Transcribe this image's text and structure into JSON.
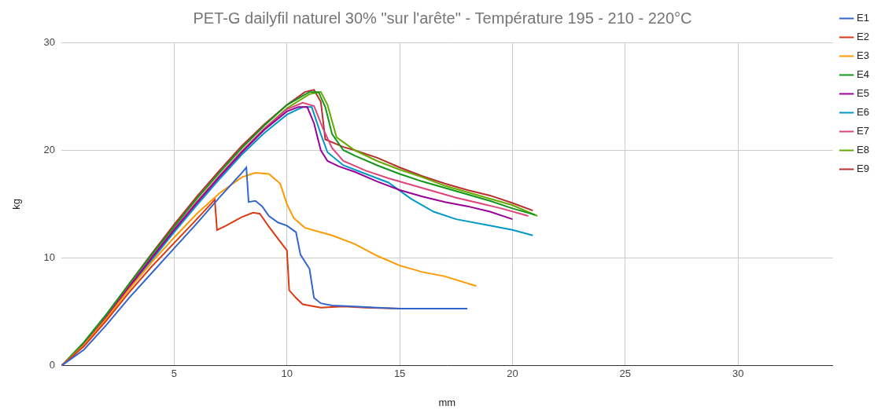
{
  "chart_data": {
    "type": "line",
    "title": "PET-G dailyfil naturel 30% \"sur l'arête\" - Température 195 - 210 - 220°C",
    "x_label": "mm",
    "y_label": "kg",
    "xlim": [
      0,
      34.2
    ],
    "xticks": [
      5,
      10,
      15,
      20,
      25,
      30
    ],
    "ylim": [
      0,
      30
    ],
    "yticks": [
      0,
      10,
      20,
      30
    ],
    "grid": true,
    "legend": "right",
    "series": [
      {
        "name": "E1",
        "color": "#3366cc",
        "x": [
          0,
          1,
          2,
          3,
          4,
          5,
          6,
          7,
          8,
          8.2,
          8.3,
          8.6,
          8.9,
          9.2,
          9.6,
          10,
          10.4,
          10.6,
          11,
          11.2,
          11.5,
          12,
          13,
          14,
          15,
          16,
          17,
          18
        ],
        "values": [
          0,
          1.5,
          3.8,
          6.3,
          8.6,
          10.9,
          13.2,
          15.6,
          17.9,
          18.4,
          15.2,
          15.3,
          14.8,
          13.9,
          13.3,
          13,
          12.4,
          10.3,
          9,
          6.3,
          5.8,
          5.6,
          5.5,
          5.4,
          5.3,
          5.3,
          5.3,
          5.3
        ]
      },
      {
        "name": "E2",
        "color": "#dc3912",
        "x": [
          0,
          1,
          2,
          3,
          4,
          5,
          6,
          6.8,
          6.9,
          7.3,
          8,
          8.5,
          8.8,
          9.2,
          9.6,
          10,
          10.1,
          10.4,
          10.7,
          11.5,
          12.5,
          13.5,
          15,
          16.5
        ],
        "values": [
          0,
          1.8,
          4.2,
          6.8,
          9.2,
          11.4,
          13.6,
          15.4,
          12.6,
          13,
          13.8,
          14.2,
          14.1,
          12.9,
          11.8,
          10.7,
          7,
          6.3,
          5.7,
          5.4,
          5.5,
          5.4,
          5.3,
          5.3
        ]
      },
      {
        "name": "E3",
        "color": "#ff9900",
        "x": [
          0,
          1,
          2,
          3,
          4,
          5,
          6,
          7,
          8,
          8.6,
          9.2,
          9.7,
          10,
          10.3,
          10.8,
          12,
          13,
          14,
          15,
          16,
          17,
          18.4
        ],
        "values": [
          0,
          1.9,
          4.4,
          7.1,
          9.6,
          11.9,
          14.1,
          16,
          17.5,
          17.9,
          17.8,
          16.9,
          15,
          13.7,
          12.8,
          12.1,
          11.3,
          10.2,
          9.3,
          8.7,
          8.3,
          7.4
        ]
      },
      {
        "name": "E4",
        "color": "#109618",
        "x": [
          0,
          1,
          2,
          3,
          4,
          5,
          6,
          7,
          8,
          9,
          10,
          11,
          11.4,
          11.7,
          12,
          12.5,
          13,
          14,
          15,
          16,
          17,
          18,
          19,
          20,
          21
        ],
        "values": [
          0,
          2.2,
          4.8,
          7.6,
          10.3,
          12.9,
          15.5,
          17.9,
          20.2,
          22.3,
          24.2,
          25.4,
          25.4,
          24,
          21.5,
          20,
          19.5,
          18.6,
          17.8,
          17.1,
          16.5,
          15.9,
          15.3,
          14.6,
          14
        ]
      },
      {
        "name": "E5",
        "color": "#990099",
        "x": [
          0,
          1,
          2,
          3,
          4,
          5,
          6,
          7,
          8,
          9,
          10,
          10.5,
          10.9,
          11.2,
          11.5,
          11.8,
          12.3,
          13,
          14,
          15,
          16,
          17,
          18,
          19,
          20
        ],
        "values": [
          0,
          1.9,
          4.5,
          7.3,
          10,
          12.6,
          15.1,
          17.5,
          19.8,
          21.9,
          23.6,
          24,
          24,
          22.5,
          20,
          19,
          18.5,
          18,
          17.1,
          16.3,
          15.7,
          15.2,
          14.8,
          14.3,
          13.6
        ]
      },
      {
        "name": "E6",
        "color": "#0099c6",
        "x": [
          0,
          1,
          2,
          3,
          4,
          5,
          6,
          7,
          8,
          9,
          10,
          10.7,
          11.1,
          11.5,
          11.8,
          12.5,
          13.5,
          14.5,
          15.5,
          16.5,
          17.5,
          19,
          20,
          20.9
        ],
        "values": [
          0,
          1.9,
          4.5,
          7.2,
          9.8,
          12.4,
          14.9,
          17.3,
          19.6,
          21.6,
          23.3,
          24,
          24,
          21.5,
          19.8,
          18.6,
          17.8,
          17,
          15.5,
          14.3,
          13.6,
          13,
          12.6,
          12.1
        ]
      },
      {
        "name": "E7",
        "color": "#dd4477",
        "x": [
          0,
          1,
          2,
          3,
          4,
          5,
          6,
          7,
          8,
          9,
          10,
          10.7,
          11.2,
          11.6,
          12,
          12.5,
          13.5,
          14.5,
          15.5,
          16.5,
          17.5,
          18.5,
          19.5,
          20.7
        ],
        "values": [
          0,
          2,
          4.6,
          7.4,
          10.1,
          12.7,
          15.2,
          17.6,
          19.9,
          22,
          23.8,
          24.4,
          24.1,
          22,
          20.2,
          19,
          18.1,
          17.4,
          16.8,
          16.2,
          15.6,
          15.1,
          14.6,
          13.9
        ]
      },
      {
        "name": "E8",
        "color": "#66aa00",
        "x": [
          0,
          1,
          2,
          3,
          4,
          5,
          6,
          7,
          8,
          9,
          10,
          11,
          11.5,
          11.8,
          12.2,
          13,
          14,
          15,
          16,
          17,
          18,
          19,
          20,
          21.1
        ],
        "values": [
          0,
          1.9,
          4.5,
          7.3,
          10,
          12.6,
          15.2,
          17.6,
          19.9,
          22,
          23.9,
          25.2,
          25.4,
          24.2,
          21.2,
          20,
          19,
          18.2,
          17.5,
          16.7,
          16.1,
          15.5,
          14.9,
          13.9
        ]
      },
      {
        "name": "E9",
        "color": "#b82e2e",
        "x": [
          0,
          1,
          2,
          3,
          4,
          5,
          6,
          7,
          8,
          9,
          10,
          10.8,
          11.2,
          11.5,
          11.7,
          12.5,
          13,
          14,
          15,
          16,
          17,
          18,
          19,
          20,
          20.9
        ],
        "values": [
          0,
          2,
          4.7,
          7.6,
          10.4,
          13.1,
          15.7,
          18.1,
          20.4,
          22.4,
          24.2,
          25.4,
          25.6,
          24.5,
          21,
          20.3,
          20,
          19.3,
          18.4,
          17.6,
          16.9,
          16.3,
          15.8,
          15.1,
          14.4
        ]
      }
    ]
  }
}
